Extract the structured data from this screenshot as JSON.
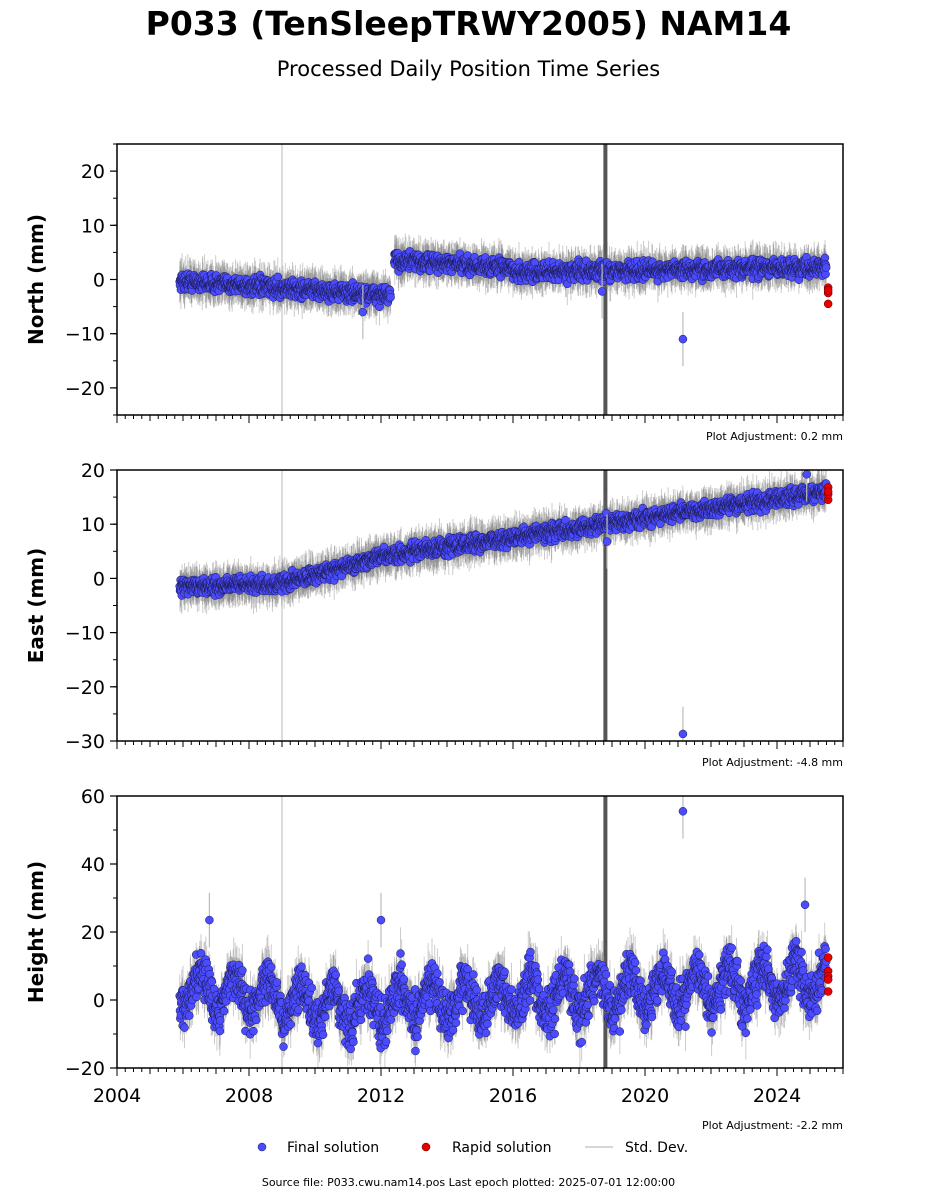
{
  "title": "P033 (TenSleepTRWY2005) NAM14",
  "subtitle": "Processed Daily Position Time Series",
  "source_text": "Source file: P033.cwu.nam14.pos  Last epoch plotted: 2025-07-01 12:00:00",
  "legend": {
    "final_label": "Final solution",
    "rapid_label": "Rapid solution",
    "std_label": "Std. Dev."
  },
  "colors": {
    "final": "#4b4bff",
    "rapid": "#e60000",
    "std": "#c8c8c8",
    "axis": "#000000"
  },
  "chart_data": [
    {
      "type": "scatter",
      "ylabel": "North (mm)",
      "adjustment": "Plot Adjustment: 0.2 mm",
      "xlim": [
        2004,
        2026
      ],
      "ylim": [
        -25,
        25
      ],
      "yticks": [
        -20,
        -10,
        0,
        10,
        20
      ],
      "xticks": [],
      "series": [
        {
          "name": "Final solution",
          "segments": [
            {
              "x": [
                2005.9,
                2012.3
              ],
              "y": [
                -0.3,
                -3.0
              ],
              "spread": 1.5
            },
            {
              "x": [
                2012.4,
                2016.0
              ],
              "y": [
                3.5,
                2.2
              ],
              "spread": 1.5
            },
            {
              "x": [
                2016.0,
                2025.5
              ],
              "y": [
                1.3,
                2.3
              ],
              "spread": 1.5
            }
          ]
        },
        {
          "name": "Rapid solution",
          "x": [
            2025.55,
            2025.55,
            2025.55,
            2025.55
          ],
          "y": [
            -2.5,
            -1.5,
            -4.5,
            -2.0
          ]
        }
      ],
      "outliers": [
        {
          "x": 2021.15,
          "y": -11
        },
        {
          "x": 2018.7,
          "y": -2.2
        },
        {
          "x": 2011.45,
          "y": -6.0
        }
      ]
    },
    {
      "type": "scatter",
      "ylabel": "East (mm)",
      "adjustment": "Plot Adjustment: -4.8 mm",
      "xlim": [
        2004,
        2026
      ],
      "ylim": [
        -30,
        20
      ],
      "yticks": [
        -30,
        -20,
        -10,
        0,
        10,
        20
      ],
      "xticks": [],
      "series": [
        {
          "name": "Final solution",
          "segments": [
            {
              "x": [
                2005.9,
                2009.0
              ],
              "y": [
                -1.5,
                -1.0
              ],
              "spread": 1.4
            },
            {
              "x": [
                2009.0,
                2012.0
              ],
              "y": [
                -1.0,
                4.0
              ],
              "spread": 1.4
            },
            {
              "x": [
                2012.0,
                2025.5
              ],
              "y": [
                4.0,
                16.0
              ],
              "spread": 1.4
            }
          ]
        },
        {
          "name": "Rapid solution",
          "x": [
            2025.55,
            2025.55,
            2025.55,
            2025.55
          ],
          "y": [
            14.5,
            15.5,
            16.8,
            16.0
          ]
        }
      ],
      "outliers": [
        {
          "x": 2021.15,
          "y": -28.7
        },
        {
          "x": 2018.85,
          "y": 6.8
        },
        {
          "x": 2024.9,
          "y": 19.2
        }
      ]
    },
    {
      "type": "scatter",
      "ylabel": "Height (mm)",
      "adjustment": "Plot Adjustment: -2.2 mm",
      "xlim": [
        2004,
        2026
      ],
      "ylim": [
        -20,
        60
      ],
      "yticks": [
        -20,
        0,
        20,
        40,
        60
      ],
      "xticks": [
        2004,
        2008,
        2012,
        2016,
        2020,
        2024
      ],
      "series": [
        {
          "name": "Final solution",
          "segments": [
            {
              "x": [
                2005.9,
                2009.0
              ],
              "y": [
                4.0,
                0.0
              ],
              "spread": 6.0
            },
            {
              "x": [
                2009.0,
                2011.0
              ],
              "y": [
                0.0,
                -2.0
              ],
              "spread": 6.0
            },
            {
              "x": [
                2011.0,
                2025.5
              ],
              "y": [
                -2.0,
                6.0
              ],
              "spread": 6.5
            }
          ]
        },
        {
          "name": "Rapid solution",
          "x": [
            2025.55,
            2025.55,
            2025.55,
            2025.55,
            2025.55
          ],
          "y": [
            12.5,
            8.5,
            7.0,
            6.0,
            2.5
          ]
        }
      ],
      "outliers": [
        {
          "x": 2021.15,
          "y": 55.5
        },
        {
          "x": 2024.85,
          "y": 28.0
        },
        {
          "x": 2012.0,
          "y": 23.5
        },
        {
          "x": 2006.8,
          "y": 23.5
        }
      ]
    }
  ]
}
